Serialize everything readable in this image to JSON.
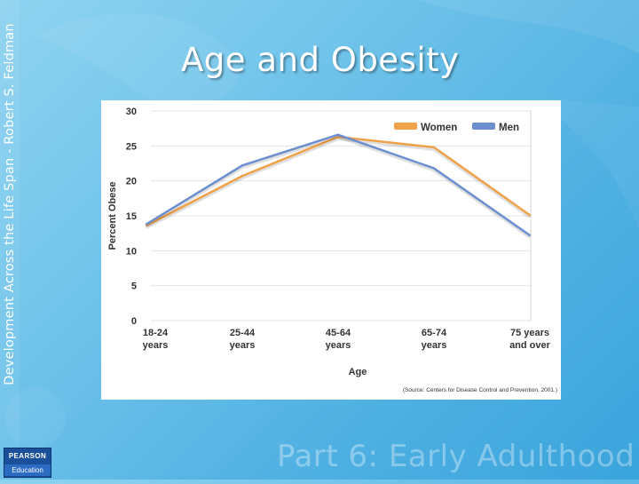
{
  "slide": {
    "title": "Age and Obesity",
    "side_text": "Development Across the Life Span - Robert S. Feldman",
    "footer": "Part 6: Early Adulthood",
    "logo_top": "PEARSON",
    "logo_bottom": "Education"
  },
  "chart_data": {
    "type": "line",
    "categories": [
      "18-24 years",
      "25-44 years",
      "45-64 years",
      "65-74 years",
      "75 years and over"
    ],
    "category_lines": [
      [
        "18-24",
        "years"
      ],
      [
        "25-44",
        "years"
      ],
      [
        "45-64",
        "years"
      ],
      [
        "65-74",
        "years"
      ],
      [
        "75 years",
        "and over"
      ]
    ],
    "series": [
      {
        "name": "Women",
        "values": [
          13.6,
          20.7,
          26.3,
          24.8,
          15.1
        ],
        "color": "#f0a24a"
      },
      {
        "name": "Men",
        "values": [
          13.8,
          22.2,
          26.6,
          21.8,
          12.2
        ],
        "color": "#6b8fcf"
      }
    ],
    "xlabel": "Age",
    "ylabel": "Percent Obese",
    "ylim": [
      0,
      30
    ],
    "yticks": [
      0,
      5,
      10,
      15,
      20,
      25,
      30
    ],
    "grid": true,
    "legend": "top-right",
    "source": "(Source: Centers for Disease Control and Prevention, 2001.)"
  }
}
